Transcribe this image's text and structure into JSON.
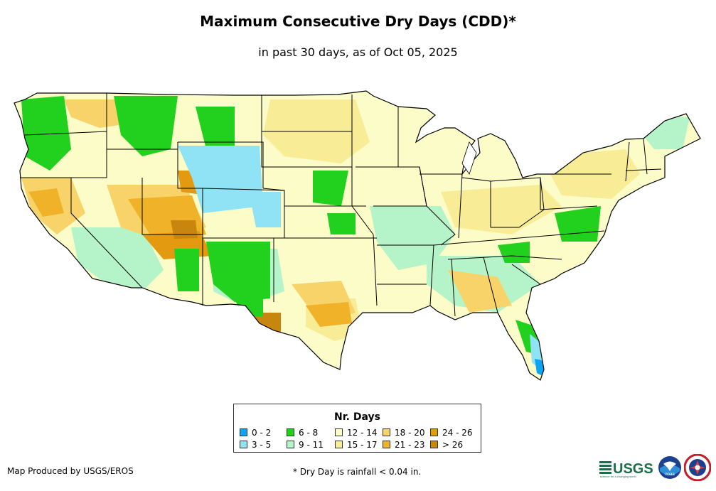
{
  "title": "Maximum Consecutive Dry Days (CDD)*",
  "subtitle": "in past 30 days, as of Oct 05, 2025",
  "legend": {
    "title": "Nr. Days",
    "items": [
      {
        "label": "0 - 2",
        "color": "#0ea5f0"
      },
      {
        "label": "3 - 5",
        "color": "#8fe3f5"
      },
      {
        "label": "6 - 8",
        "color": "#22d11d"
      },
      {
        "label": "9 - 11",
        "color": "#b4f4c8"
      },
      {
        "label": "12 - 14",
        "color": "#fbfcc8"
      },
      {
        "label": "15 - 17",
        "color": "#f8ec96"
      },
      {
        "label": "18 - 20",
        "color": "#f7d36a"
      },
      {
        "label": "21 - 23",
        "color": "#f0b228"
      },
      {
        "label": "24 - 26",
        "color": "#e49a10"
      },
      {
        "label": "> 26",
        "color": "#c8860e"
      }
    ]
  },
  "footer": {
    "producer": "Map Produced by USGS/EROS",
    "note": "* Dry Day is rainfall < 0.04 in."
  },
  "logos": {
    "usgs": "USGS",
    "usgs_tagline": "science for a changing world",
    "noaa": "noaa"
  }
}
